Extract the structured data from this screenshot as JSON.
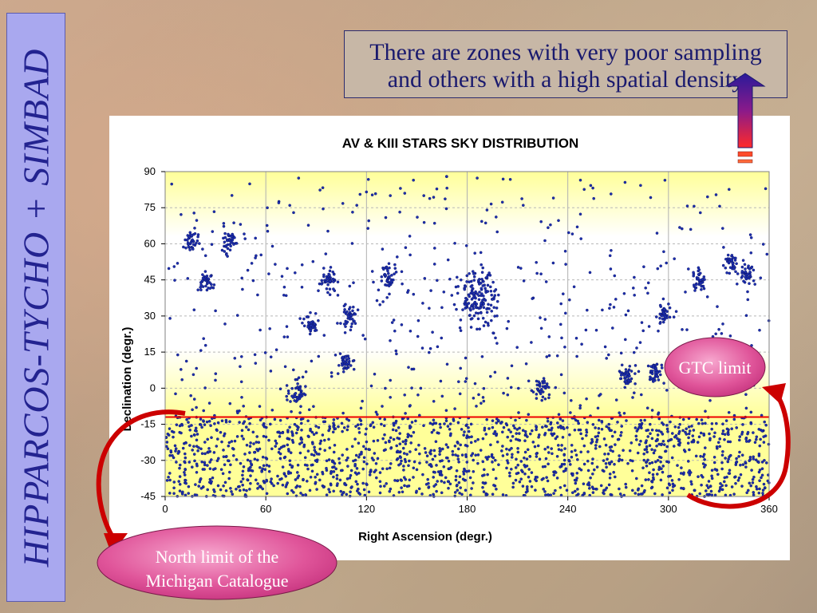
{
  "slide": {
    "side_title": "HIPPARCOS-TYCHO + SIMBAD",
    "note_line1": "There are zones with very poor sampling",
    "note_line2": "and others with a high spatial density",
    "callout_gtc": "GTC limit",
    "callout_michigan_line1": "North limit of the",
    "callout_michigan_line2": "Michigan Catalogue",
    "colors": {
      "side_panel": "#a9a8ef",
      "side_text": "#232390",
      "callout_fill": "#e0559a",
      "arrow": "#cc0000",
      "limit_line": "#ee0000",
      "points": "#1c2fb0",
      "plot_band_yellow": "#ffff99"
    }
  },
  "chart_data": {
    "type": "scatter",
    "title": "AV & KIII STARS SKY DISTRIBUTION",
    "xlabel": "Right Ascension (degr.)",
    "ylabel": "Declination (degr.)",
    "xlim": [
      0,
      360
    ],
    "ylim": [
      -45,
      90
    ],
    "xticks": [
      "0",
      "60",
      "120",
      "180",
      "240",
      "300",
      "360"
    ],
    "yticks": [
      "90",
      "75",
      "60",
      "45",
      "30",
      "15",
      "0",
      "-15",
      "-30",
      "-45"
    ],
    "grid": true,
    "reference_lines": [
      {
        "y": -12
      }
    ],
    "dense_region": {
      "dec_range": [
        -45,
        -12
      ],
      "ra_range": [
        0,
        360
      ]
    },
    "clusters": [
      {
        "ra": 38,
        "dec": 61
      },
      {
        "ra": 25,
        "dec": 45
      },
      {
        "ra": 87,
        "dec": 27
      },
      {
        "ra": 98,
        "dec": 45
      },
      {
        "ra": 108,
        "dec": 10
      },
      {
        "ra": 187,
        "dec": 38
      },
      {
        "ra": 133,
        "dec": 46
      },
      {
        "ra": 337,
        "dec": 52
      },
      {
        "ra": 347,
        "dec": 48
      },
      {
        "ra": 318,
        "dec": 45
      },
      {
        "ra": 297,
        "dec": 31
      },
      {
        "ra": 224,
        "dec": 0
      },
      {
        "ra": 275,
        "dec": 5
      },
      {
        "ra": 292,
        "dec": 7
      },
      {
        "ra": 110,
        "dec": 30
      },
      {
        "ra": 79,
        "dec": -2
      },
      {
        "ra": 16,
        "dec": 61
      }
    ]
  }
}
